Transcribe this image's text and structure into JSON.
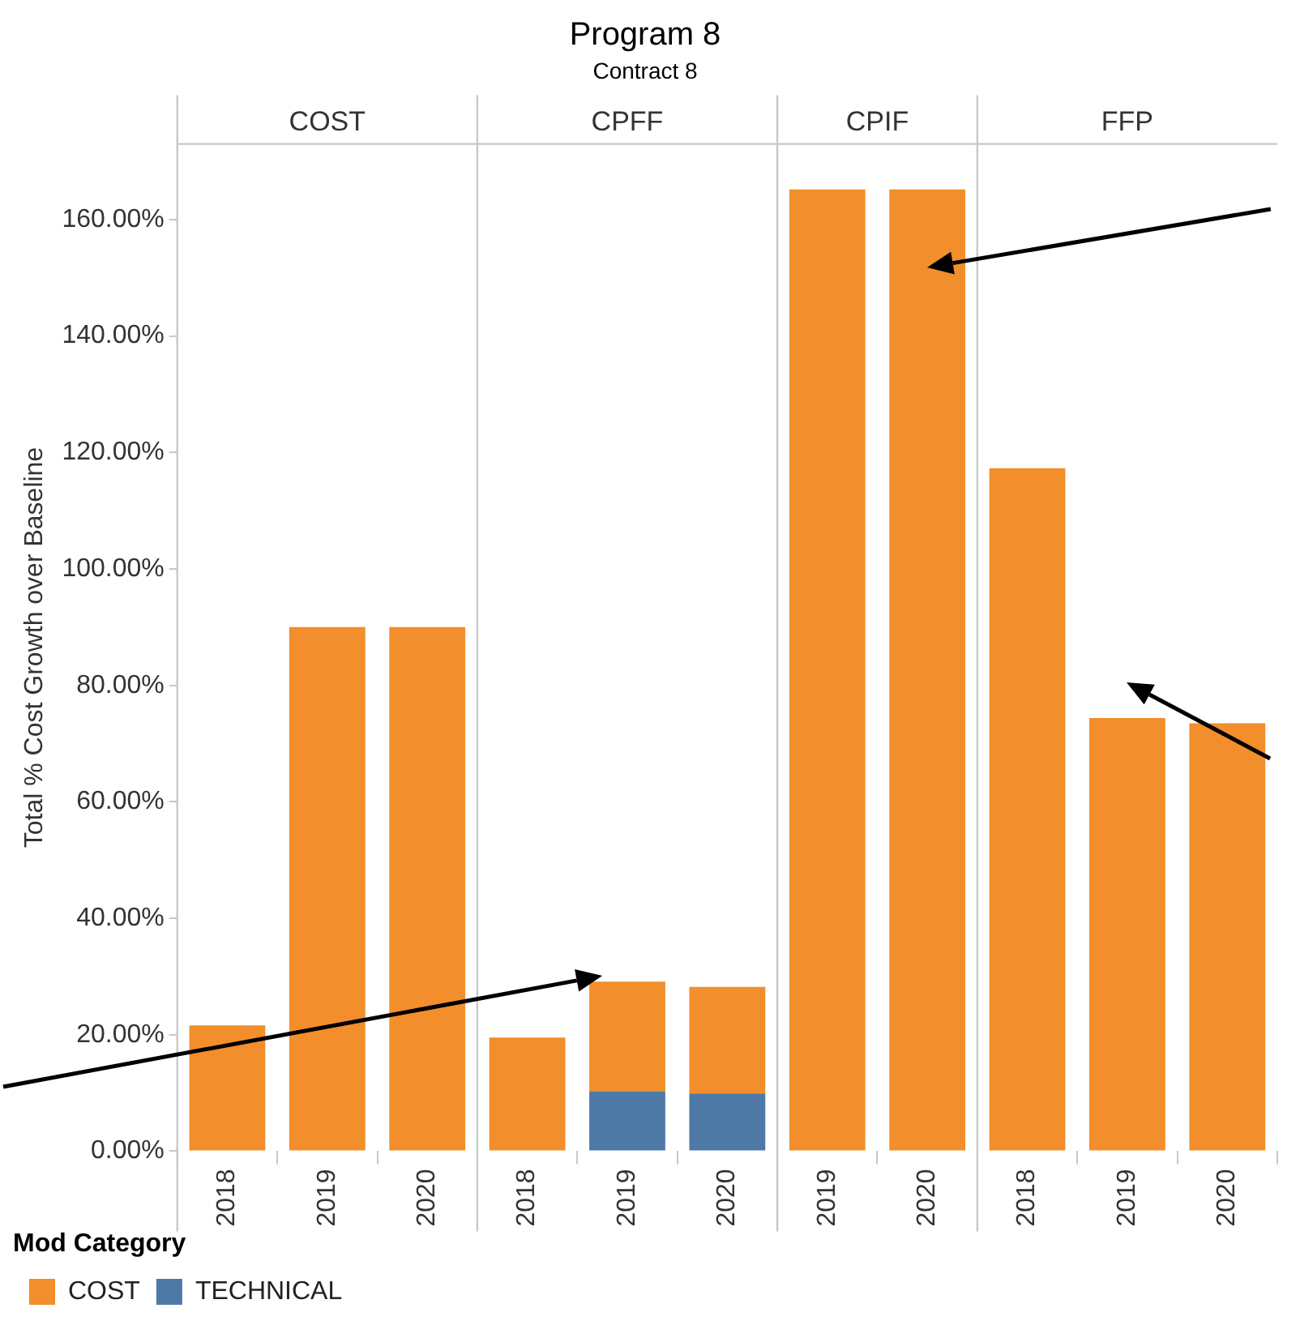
{
  "chart_data": {
    "type": "bar",
    "title": "Program 8",
    "subtitle": "Contract 8",
    "ylabel": "Total % Cost Growth over Baseline",
    "legend_title": "Mod Category",
    "annotations": [
      "COST",
      "CPFF",
      "CPIF",
      "FFP"
    ],
    "categories": [
      "2018",
      "2019",
      "2020",
      "2018",
      "2019",
      "2020",
      "2019",
      "2020",
      "2018",
      "2019",
      "2020"
    ],
    "stacked": true,
    "series": [
      {
        "name": "TECHNICAL",
        "color": "#4e79a7",
        "values": [
          null,
          null,
          null,
          null,
          10.3,
          9.9,
          null,
          null,
          null,
          null,
          null
        ]
      },
      {
        "name": "COST",
        "color": "#f28e2b",
        "values": [
          21.6,
          90,
          90,
          19.5,
          18.8,
          18.3,
          165.2,
          165.2,
          117.3,
          74.4,
          73.5
        ]
      }
    ],
    "ylim": [
      0,
      173
    ],
    "yticks": [
      {
        "value": 0,
        "label": "0.00%"
      },
      {
        "value": 20,
        "label": "20.00%"
      },
      {
        "value": 40,
        "label": "40.00%"
      },
      {
        "value": 60,
        "label": "60.00%"
      },
      {
        "value": 80,
        "label": "80.00%"
      },
      {
        "value": 100,
        "label": "100.00%"
      },
      {
        "value": 120,
        "label": "120.00%"
      },
      {
        "value": 140,
        "label": "140.00%"
      },
      {
        "value": 160,
        "label": "160.00%"
      }
    ],
    "grid": false,
    "legend": "bottom left"
  }
}
